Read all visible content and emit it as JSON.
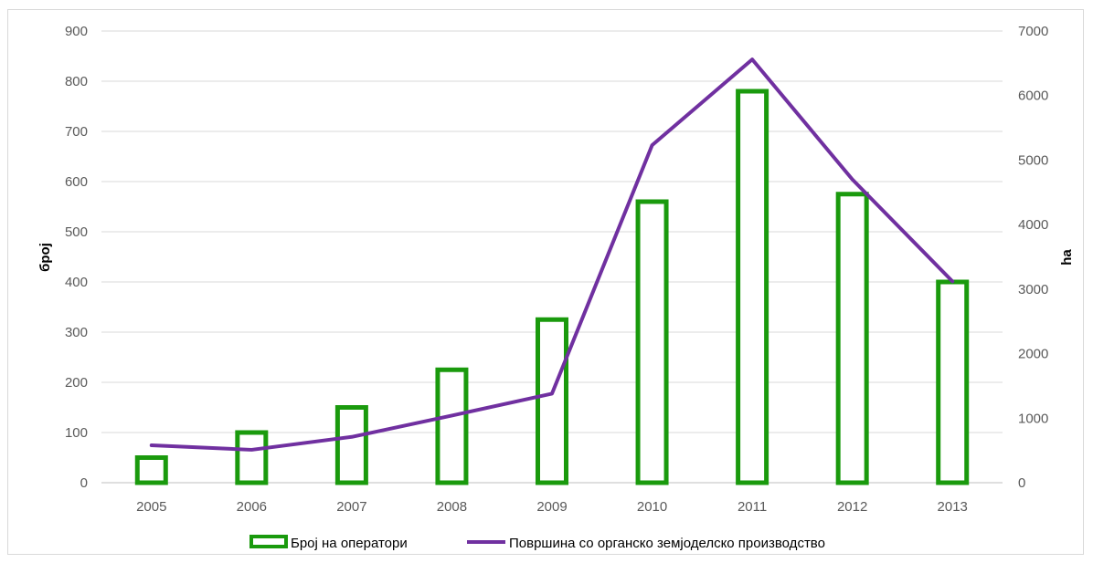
{
  "chart_data": {
    "type": "bar",
    "categories": [
      "2005",
      "2006",
      "2007",
      "2008",
      "2009",
      "2010",
      "2011",
      "2012",
      "2013"
    ],
    "series": [
      {
        "name": "Број на оператори",
        "type": "bar",
        "axis": "left",
        "color": "#1a9a0d",
        "values": [
          50,
          100,
          150,
          225,
          325,
          560,
          780,
          575,
          400
        ]
      },
      {
        "name": "Површина со органско земјоделско производство",
        "type": "line",
        "axis": "right",
        "color": "#7030a0",
        "values": [
          580,
          510,
          710,
          1040,
          1380,
          5230,
          6560,
          4700,
          3120
        ]
      }
    ],
    "ylabel": "број",
    "y2label": "ha",
    "ylim": [
      0,
      900
    ],
    "y2lim": [
      0,
      7000
    ],
    "yticks": [
      "0",
      "100",
      "200",
      "300",
      "400",
      "500",
      "600",
      "700",
      "800",
      "900"
    ],
    "y2ticks": [
      "0",
      "1000",
      "2000",
      "3000",
      "4000",
      "5000",
      "6000",
      "7000"
    ],
    "grid": true,
    "legend_position": "bottom"
  }
}
